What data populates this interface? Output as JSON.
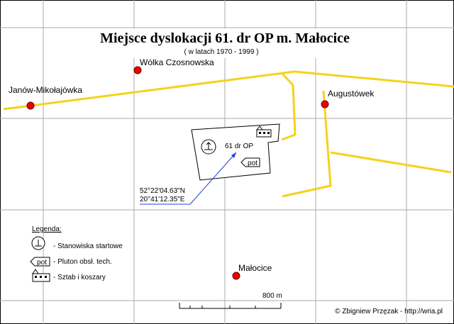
{
  "header": {
    "title": "Miejsce dyslokacji 61. dr OP m. Małocice",
    "subtitle": "( w latach 1970 - 1999 )"
  },
  "places": [
    {
      "label": "Wólka Czosnowska"
    },
    {
      "label": "Janów-Mikołajówka"
    },
    {
      "label": "Augustówek"
    },
    {
      "label": "Małocice"
    }
  ],
  "site": {
    "label": "61 dr OP",
    "pot": "pot",
    "latitude": "52°22'04.63\"N",
    "longitude": "20°41'12.35\"E"
  },
  "legend": {
    "title": "Legenda:",
    "items": [
      {
        "label": "- Stanowiska startowe"
      },
      {
        "label": "- Pluton obsł. tech."
      },
      {
        "label": "- Sztab i koszary"
      }
    ]
  },
  "scale": {
    "label": "800 m"
  },
  "credit": "© Zbigniew Przęzak - http://wria.pl"
}
